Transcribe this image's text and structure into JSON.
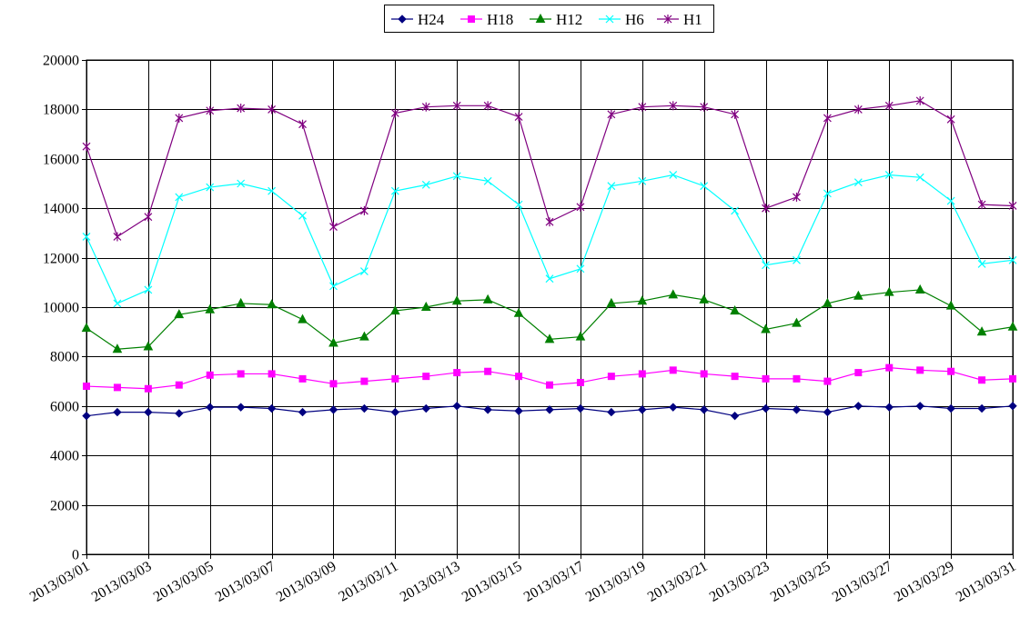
{
  "chart_data": {
    "type": "line",
    "title": "",
    "xlabel": "",
    "ylabel": "",
    "ylim": [
      0,
      20000
    ],
    "yticks": [
      0,
      2000,
      4000,
      6000,
      8000,
      10000,
      12000,
      14000,
      16000,
      18000,
      20000
    ],
    "grid": true,
    "legend_position": "top-center",
    "categories": [
      "2013/03/01",
      "2013/03/02",
      "2013/03/03",
      "2013/03/04",
      "2013/03/05",
      "2013/03/06",
      "2013/03/07",
      "2013/03/08",
      "2013/03/09",
      "2013/03/10",
      "2013/03/11",
      "2013/03/12",
      "2013/03/13",
      "2013/03/14",
      "2013/03/15",
      "2013/03/16",
      "2013/03/17",
      "2013/03/18",
      "2013/03/19",
      "2013/03/20",
      "2013/03/21",
      "2013/03/22",
      "2013/03/23",
      "2013/03/24",
      "2013/03/25",
      "2013/03/26",
      "2013/03/27",
      "2013/03/28",
      "2013/03/29",
      "2013/03/30",
      "2013/03/31"
    ],
    "x_tick_labels": [
      "2013/03/01",
      "2013/03/03",
      "2013/03/05",
      "2013/03/07",
      "2013/03/09",
      "2013/03/11",
      "2013/03/13",
      "2013/03/15",
      "2013/03/17",
      "2013/03/19",
      "2013/03/21",
      "2013/03/23",
      "2013/03/25",
      "2013/03/27",
      "2013/03/29",
      "2013/03/31"
    ],
    "series": [
      {
        "name": "H24",
        "color": "#000080",
        "marker": "diamond",
        "values": [
          5600,
          5750,
          5750,
          5700,
          5950,
          5950,
          5900,
          5750,
          5850,
          5900,
          5750,
          5900,
          6000,
          5850,
          5800,
          5850,
          5900,
          5750,
          5850,
          5950,
          5850,
          5600,
          5900,
          5850,
          5750,
          6000,
          5950,
          6000,
          5900,
          5900,
          6000
        ]
      },
      {
        "name": "H18",
        "color": "#ff00ff",
        "marker": "square",
        "values": [
          6800,
          6750,
          6700,
          6850,
          7250,
          7300,
          7300,
          7100,
          6900,
          7000,
          7100,
          7200,
          7350,
          7400,
          7200,
          6850,
          6950,
          7200,
          7300,
          7450,
          7300,
          7200,
          7100,
          7100,
          7000,
          7350,
          7550,
          7450,
          7400,
          7050,
          7100
        ]
      },
      {
        "name": "H12",
        "color": "#008000",
        "marker": "triangle",
        "values": [
          9150,
          8300,
          8400,
          9700,
          9900,
          10150,
          10100,
          9500,
          8550,
          8800,
          9850,
          10000,
          10250,
          10300,
          9750,
          8700,
          8800,
          10150,
          10250,
          10500,
          10300,
          9850,
          9100,
          9350,
          10150,
          10450,
          10600,
          10700,
          10050,
          9000,
          9200
        ]
      },
      {
        "name": "H6",
        "color": "#00ffff",
        "marker": "x",
        "values": [
          12850,
          10150,
          10700,
          14450,
          14850,
          15000,
          14700,
          13700,
          10850,
          11450,
          14700,
          14950,
          15300,
          15100,
          14150,
          11150,
          11550,
          14900,
          15100,
          15350,
          14900,
          13900,
          11700,
          11900,
          14600,
          15050,
          15350,
          15250,
          14300,
          11750,
          11900
        ]
      },
      {
        "name": "H1",
        "color": "#800080",
        "marker": "star",
        "values": [
          16500,
          12850,
          13650,
          17650,
          17950,
          18050,
          18000,
          17400,
          13250,
          13900,
          17850,
          18100,
          18150,
          18150,
          17700,
          13450,
          14050,
          17800,
          18100,
          18150,
          18100,
          17800,
          14000,
          14450,
          17650,
          18000,
          18150,
          18350,
          17600,
          14150,
          14100
        ]
      }
    ]
  }
}
